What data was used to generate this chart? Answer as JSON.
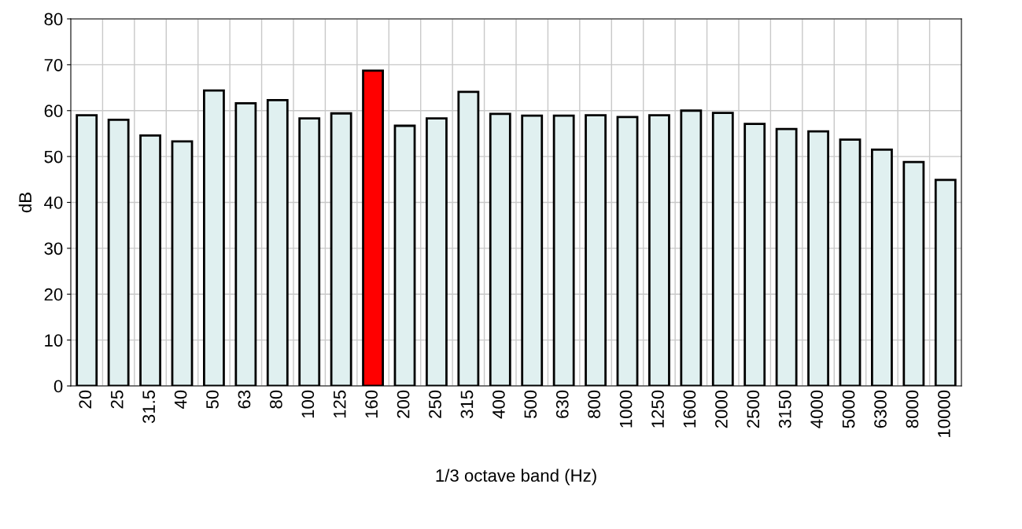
{
  "chart_data": {
    "type": "bar",
    "xlabel": "1/3 octave band (Hz)",
    "ylabel": "dB",
    "categories": [
      "20",
      "25",
      "31.5",
      "40",
      "50",
      "63",
      "80",
      "100",
      "125",
      "160",
      "200",
      "250",
      "315",
      "400",
      "500",
      "630",
      "800",
      "1000",
      "1250",
      "1600",
      "2000",
      "2500",
      "3150",
      "4000",
      "5000",
      "6300",
      "8000",
      "10000"
    ],
    "values": [
      59.0,
      58.0,
      54.6,
      53.3,
      64.4,
      61.6,
      62.3,
      58.3,
      59.4,
      68.7,
      56.7,
      58.3,
      64.1,
      59.3,
      58.9,
      58.9,
      59.0,
      58.6,
      59.0,
      60.0,
      59.5,
      57.1,
      56.0,
      55.5,
      53.7,
      51.5,
      48.8,
      44.9
    ],
    "colors": [
      "#e0f0f0",
      "#e0f0f0",
      "#e0f0f0",
      "#e0f0f0",
      "#e0f0f0",
      "#e0f0f0",
      "#e0f0f0",
      "#e0f0f0",
      "#e0f0f0",
      "#ff0000",
      "#e0f0f0",
      "#e0f0f0",
      "#e0f0f0",
      "#e0f0f0",
      "#e0f0f0",
      "#e0f0f0",
      "#e0f0f0",
      "#e0f0f0",
      "#e0f0f0",
      "#e0f0f0",
      "#e0f0f0",
      "#e0f0f0",
      "#e0f0f0",
      "#e0f0f0",
      "#e0f0f0",
      "#e0f0f0",
      "#e0f0f0",
      "#e0f0f0"
    ],
    "ylim": [
      0,
      80
    ],
    "yticks": [
      0,
      10,
      20,
      30,
      40,
      50,
      60,
      70,
      80
    ],
    "grid": true
  }
}
